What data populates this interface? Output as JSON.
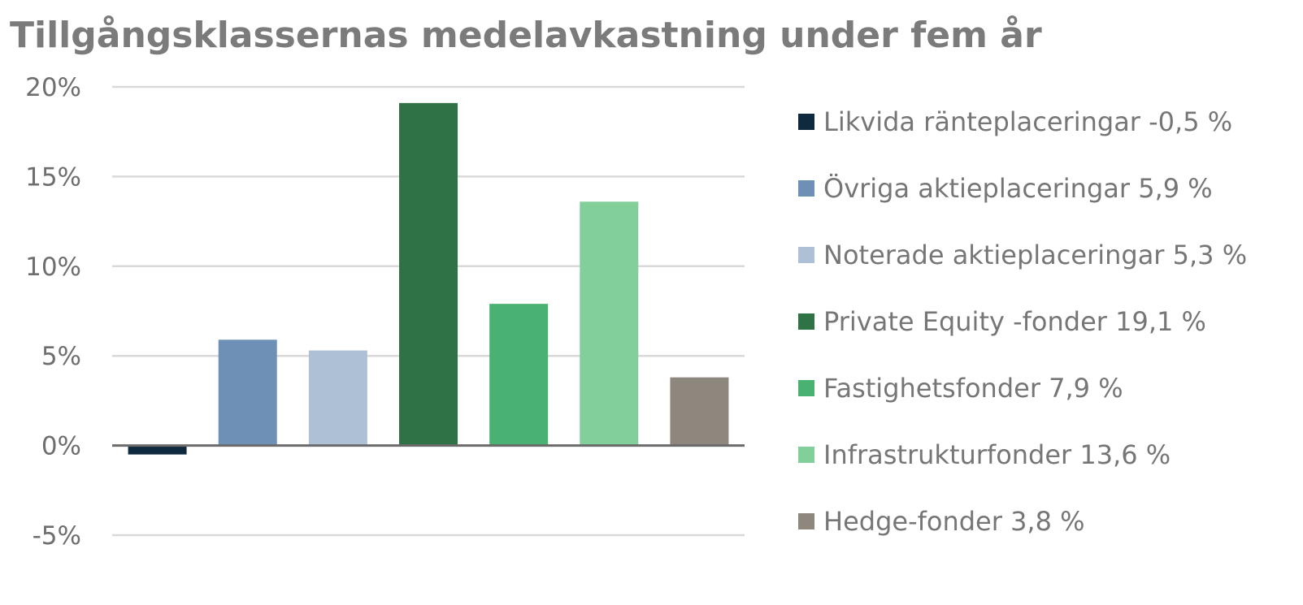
{
  "chart_data": {
    "type": "bar",
    "title": "Tillgångsklassernas medelavkastning under fem år",
    "xlabel": "",
    "ylabel": "",
    "ylim": [
      -5,
      20
    ],
    "y_ticks": [
      20,
      15,
      10,
      5,
      0,
      -5
    ],
    "y_tick_labels": [
      "20%",
      "15%",
      "10%",
      "5%",
      "0%",
      "-5%"
    ],
    "grid": true,
    "legend_position": "right",
    "series": [
      {
        "name": "Likvida ränteplaceringar -0,5 %",
        "value": -0.5,
        "color": "#0f2a3f"
      },
      {
        "name": "Övriga aktieplaceringar 5,9 %",
        "value": 5.9,
        "color": "#6e90b6"
      },
      {
        "name": "Noterade aktieplaceringar 5,3 %",
        "value": 5.3,
        "color": "#adc0d6"
      },
      {
        "name": "Private Equity -fonder 19,1 %",
        "value": 19.1,
        "color": "#2f7246"
      },
      {
        "name": "Fastighetsfonder 7,9 %",
        "value": 7.9,
        "color": "#49b172"
      },
      {
        "name": "Infrastrukturfonder 13,6 %",
        "value": 13.6,
        "color": "#83cf9a"
      },
      {
        "name": "Hedge-fonder 3,8 %",
        "value": 3.8,
        "color": "#8e877e"
      }
    ]
  }
}
